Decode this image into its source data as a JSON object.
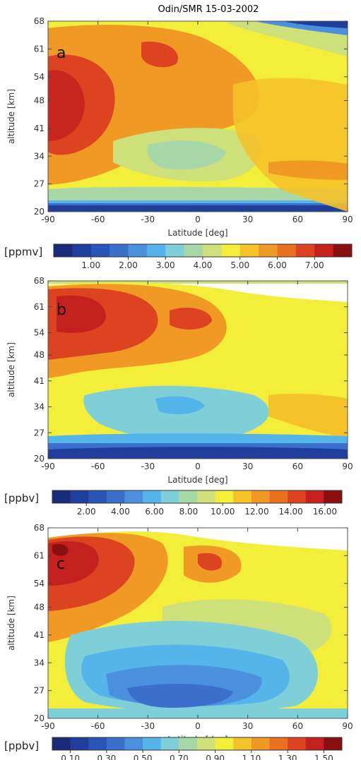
{
  "figure_title": "Odin/SMR 15-03-2002",
  "palette": [
    "#1a2a7a",
    "#1f3d9a",
    "#2a55b8",
    "#3a70cc",
    "#4a90dd",
    "#55b5ea",
    "#7fcfd8",
    "#a9d8a8",
    "#cde07a",
    "#f3ee3a",
    "#f5c22a",
    "#f09a25",
    "#e8701e",
    "#dc4320",
    "#c4201d",
    "#8a0f10"
  ],
  "chart_data": [
    {
      "type": "heatmap",
      "panel_label": "a",
      "xlabel": "Latitude [deg]",
      "ylabel": "altitude [km]",
      "xticks": [
        "-90",
        "-60",
        "-30",
        "0",
        "30",
        "60",
        "90"
      ],
      "yticks": [
        "68",
        "61",
        "54",
        "48",
        "41",
        "34",
        "27",
        "20"
      ],
      "xlim": [
        -90,
        90
      ],
      "ylim": [
        20,
        68
      ],
      "colorbar_unit": "[ppmv]",
      "colorbar_ticks": [
        "1.00",
        "2.00",
        "3.00",
        "4.00",
        "5.00",
        "6.00",
        "7.00"
      ],
      "value_range": [
        0,
        8
      ]
    },
    {
      "type": "heatmap",
      "panel_label": "b",
      "xlabel": "Latitude [deg]",
      "ylabel": "altitude [km]",
      "xticks": [
        "-90",
        "-60",
        "-30",
        "0",
        "30",
        "60",
        "90"
      ],
      "yticks": [
        "68",
        "61",
        "54",
        "48",
        "41",
        "34",
        "27",
        "20"
      ],
      "xlim": [
        -90,
        90
      ],
      "ylim": [
        20,
        68
      ],
      "colorbar_unit": "[ppbv]",
      "colorbar_ticks": [
        "2.00",
        "4.00",
        "6.00",
        "8.00",
        "10.00",
        "12.00",
        "14.00",
        "16.00"
      ],
      "value_range": [
        0,
        17
      ]
    },
    {
      "type": "heatmap",
      "panel_label": "c",
      "xlabel": "Latitude [deg]",
      "ylabel": "altitude [km]",
      "xticks": [
        "-90",
        "-60",
        "-30",
        "0",
        "30",
        "60",
        "90"
      ],
      "yticks": [
        "68",
        "61",
        "54",
        "48",
        "41",
        "34",
        "27",
        "20"
      ],
      "xlim": [
        -90,
        90
      ],
      "ylim": [
        20,
        68
      ],
      "colorbar_unit": "[ppbv]",
      "colorbar_ticks": [
        "0.10",
        "0.30",
        "0.50",
        "0.70",
        "0.90",
        "1.10",
        "1.30",
        "1.50"
      ],
      "value_range": [
        0,
        1.6
      ]
    }
  ]
}
